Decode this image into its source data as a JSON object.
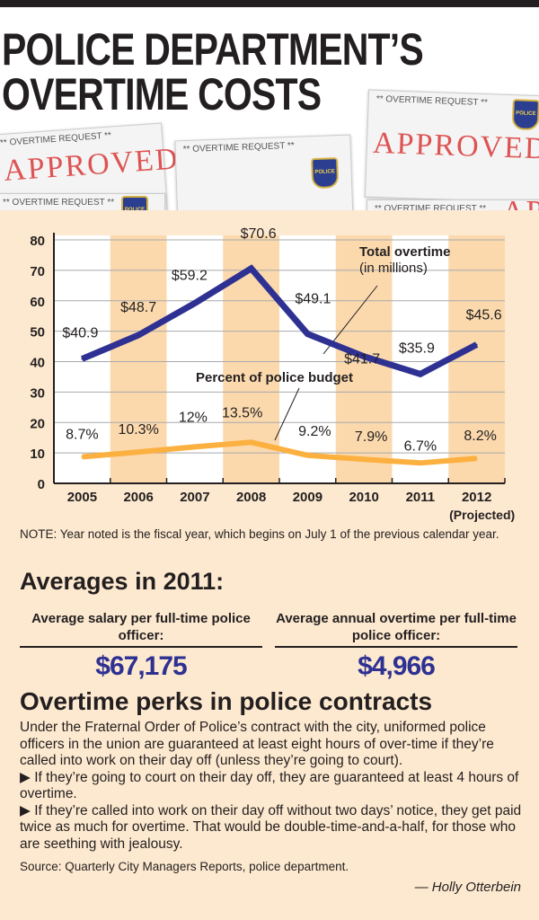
{
  "header": {
    "title_line1": "POLICE DEPARTMENT’S",
    "title_line2": "OVERTIME COSTS"
  },
  "photo": {
    "form_title": "** OVERTIME REQUEST **",
    "stamp": "APPROVED",
    "badge": "POLICE"
  },
  "colors": {
    "overtime_line": "#2e3192",
    "percent_line": "#fbb040",
    "background": "#fde9cf",
    "column_shade": "#fbd9ad"
  },
  "chart_data": {
    "type": "line",
    "categories": [
      "2005",
      "2006",
      "2007",
      "2008",
      "2009",
      "2010",
      "2011",
      "2012"
    ],
    "category_note": "(Projected)",
    "ylim": [
      0,
      80
    ],
    "yticks": [
      0,
      10,
      20,
      30,
      40,
      50,
      60,
      70,
      80
    ],
    "grid": true,
    "series": [
      {
        "name": "Total overtime",
        "subtitle": "(in millions)",
        "values": [
          40.9,
          48.7,
          59.2,
          70.6,
          49.1,
          41.7,
          35.9,
          45.6
        ],
        "labels": [
          "$40.9",
          "$48.7",
          "$59.2",
          "$70.6",
          "$49.1",
          "$41.7",
          "$35.9",
          "$45.6"
        ]
      },
      {
        "name": "Percent of police budget",
        "values": [
          8.7,
          10.3,
          12,
          13.5,
          9.2,
          7.9,
          6.7,
          8.2
        ],
        "labels": [
          "8.7%",
          "10.3%",
          "12%",
          "13.5%",
          "9.2%",
          "7.9%",
          "6.7%",
          "8.2%"
        ]
      }
    ]
  },
  "note": "NOTE: Year noted is the fiscal year, which begins on July 1 of the previous calendar year.",
  "averages": {
    "heading": "Averages in 2011:",
    "items": [
      {
        "label": "Average salary per full-time police officer:",
        "value": "$67,175"
      },
      {
        "label": "Average annual overtime per full-time police officer:",
        "value": "$4,966"
      }
    ]
  },
  "perks": {
    "heading": "Overtime perks in police contracts",
    "paragraphs": [
      "Under the Fraternal Order of Police’s contract with the city, uniformed police officers in the union are guaranteed at least eight hours of over-time if they’re called into work on their day off (unless they’re going to court).",
      "▶ If they’re going to court on their day off, they are guaranteed at least 4 hours of overtime.",
      "▶ If they’re called into work on their day off without two days’ notice, they get paid twice as much for overtime. That would be double-time-and-a-half, for those who are seething with jealousy."
    ]
  },
  "source": "Source: Quarterly City Managers Reports, police department.",
  "byline": "— Holly Otterbein"
}
